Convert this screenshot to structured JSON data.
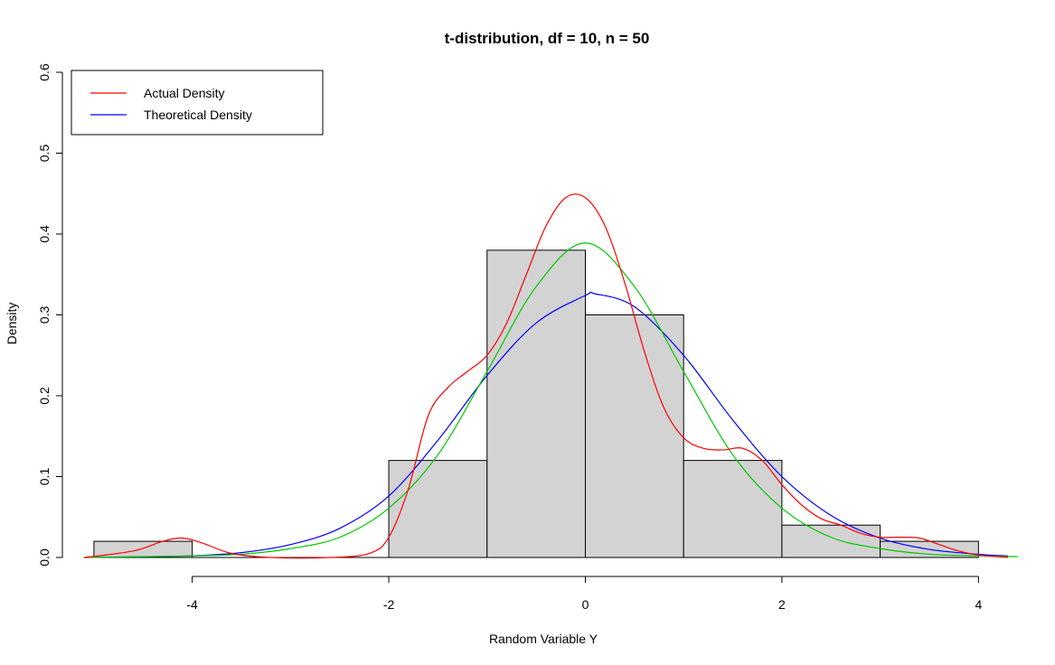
{
  "chart_data": {
    "type": "histogram",
    "title": "t-distribution, df = 10, n = 50",
    "xlabel": "Random Variable Y",
    "ylabel": "Density",
    "xlim": [
      -5.22,
      4.42
    ],
    "ylim": [
      0,
      0.6
    ],
    "x_ticks": [
      -4,
      -2,
      0,
      2,
      4
    ],
    "x_tick_labels": [
      "-4",
      "-2",
      "0",
      "2",
      "4"
    ],
    "y_ticks": [
      0.0,
      0.1,
      0.2,
      0.3,
      0.4,
      0.5,
      0.6
    ],
    "y_tick_labels": [
      "0.0",
      "0.1",
      "0.2",
      "0.3",
      "0.4",
      "0.5",
      "0.6"
    ],
    "grid": false,
    "bar_fill": "#d3d3d3",
    "bins": [
      {
        "x0": -5,
        "x1": -4,
        "density": 0.02
      },
      {
        "x0": -4,
        "x1": -3,
        "density": 0.0
      },
      {
        "x0": -3,
        "x1": -2,
        "density": 0.0
      },
      {
        "x0": -2,
        "x1": -1,
        "density": 0.12
      },
      {
        "x0": -1,
        "x1": 0,
        "density": 0.38
      },
      {
        "x0": 0,
        "x1": 1,
        "density": 0.3
      },
      {
        "x0": 1,
        "x1": 2,
        "density": 0.12
      },
      {
        "x0": 2,
        "x1": 3,
        "density": 0.04
      },
      {
        "x0": 3,
        "x1": 4,
        "density": 0.02
      }
    ],
    "series": [
      {
        "name": "Actual Density",
        "color": "#ff0000",
        "x": [
          -5.1,
          -4.6,
          -4.3,
          -4.1,
          -3.9,
          -3.6,
          -3.2,
          -2.6,
          -2.2,
          -2.0,
          -1.8,
          -1.6,
          -1.4,
          -1.2,
          -1.0,
          -0.8,
          -0.6,
          -0.4,
          -0.2,
          0.0,
          0.2,
          0.4,
          0.6,
          0.8,
          1.0,
          1.2,
          1.4,
          1.6,
          1.8,
          2.0,
          2.2,
          2.4,
          2.6,
          2.8,
          3.0,
          3.2,
          3.4,
          3.6,
          3.8,
          4.0,
          4.3
        ],
        "y": [
          0.0,
          0.008,
          0.02,
          0.024,
          0.018,
          0.005,
          0.0,
          0.0,
          0.005,
          0.025,
          0.085,
          0.175,
          0.21,
          0.23,
          0.25,
          0.29,
          0.35,
          0.41,
          0.445,
          0.445,
          0.41,
          0.34,
          0.255,
          0.185,
          0.148,
          0.135,
          0.133,
          0.135,
          0.12,
          0.09,
          0.065,
          0.048,
          0.04,
          0.03,
          0.025,
          0.025,
          0.024,
          0.016,
          0.008,
          0.003,
          0.0
        ]
      },
      {
        "name": "Theoretical Density",
        "color": "#0000ff",
        "x": [
          -5.1,
          -4.5,
          -4.0,
          -3.5,
          -3.0,
          -2.5,
          -2.0,
          -1.5,
          -1.0,
          -0.5,
          0.0,
          0.1,
          0.5,
          1.0,
          1.5,
          2.0,
          2.5,
          3.0,
          3.5,
          4.0,
          4.3
        ],
        "y": [
          0.0,
          0.001,
          0.002,
          0.006,
          0.016,
          0.036,
          0.076,
          0.145,
          0.225,
          0.29,
          0.324,
          0.326,
          0.31,
          0.25,
          0.17,
          0.1,
          0.052,
          0.024,
          0.01,
          0.004,
          0.002
        ]
      },
      {
        "color": "#00c800",
        "x": [
          -5.1,
          -4.5,
          -4.0,
          -3.5,
          -3.0,
          -2.5,
          -2.0,
          -1.5,
          -1.0,
          -0.5,
          0.0,
          0.5,
          1.0,
          1.5,
          2.0,
          2.5,
          3.0,
          3.5,
          4.0,
          4.4
        ],
        "y": [
          0.0,
          0.001,
          0.002,
          0.004,
          0.011,
          0.025,
          0.061,
          0.127,
          0.23,
          0.335,
          0.389,
          0.335,
          0.23,
          0.127,
          0.061,
          0.025,
          0.011,
          0.004,
          0.002,
          0.001
        ]
      }
    ],
    "legend": {
      "placement": "top-left",
      "entries": [
        {
          "label": "Actual Density",
          "color": "#ff0000"
        },
        {
          "label": "Theoretical Density",
          "color": "#0000ff"
        }
      ]
    }
  }
}
